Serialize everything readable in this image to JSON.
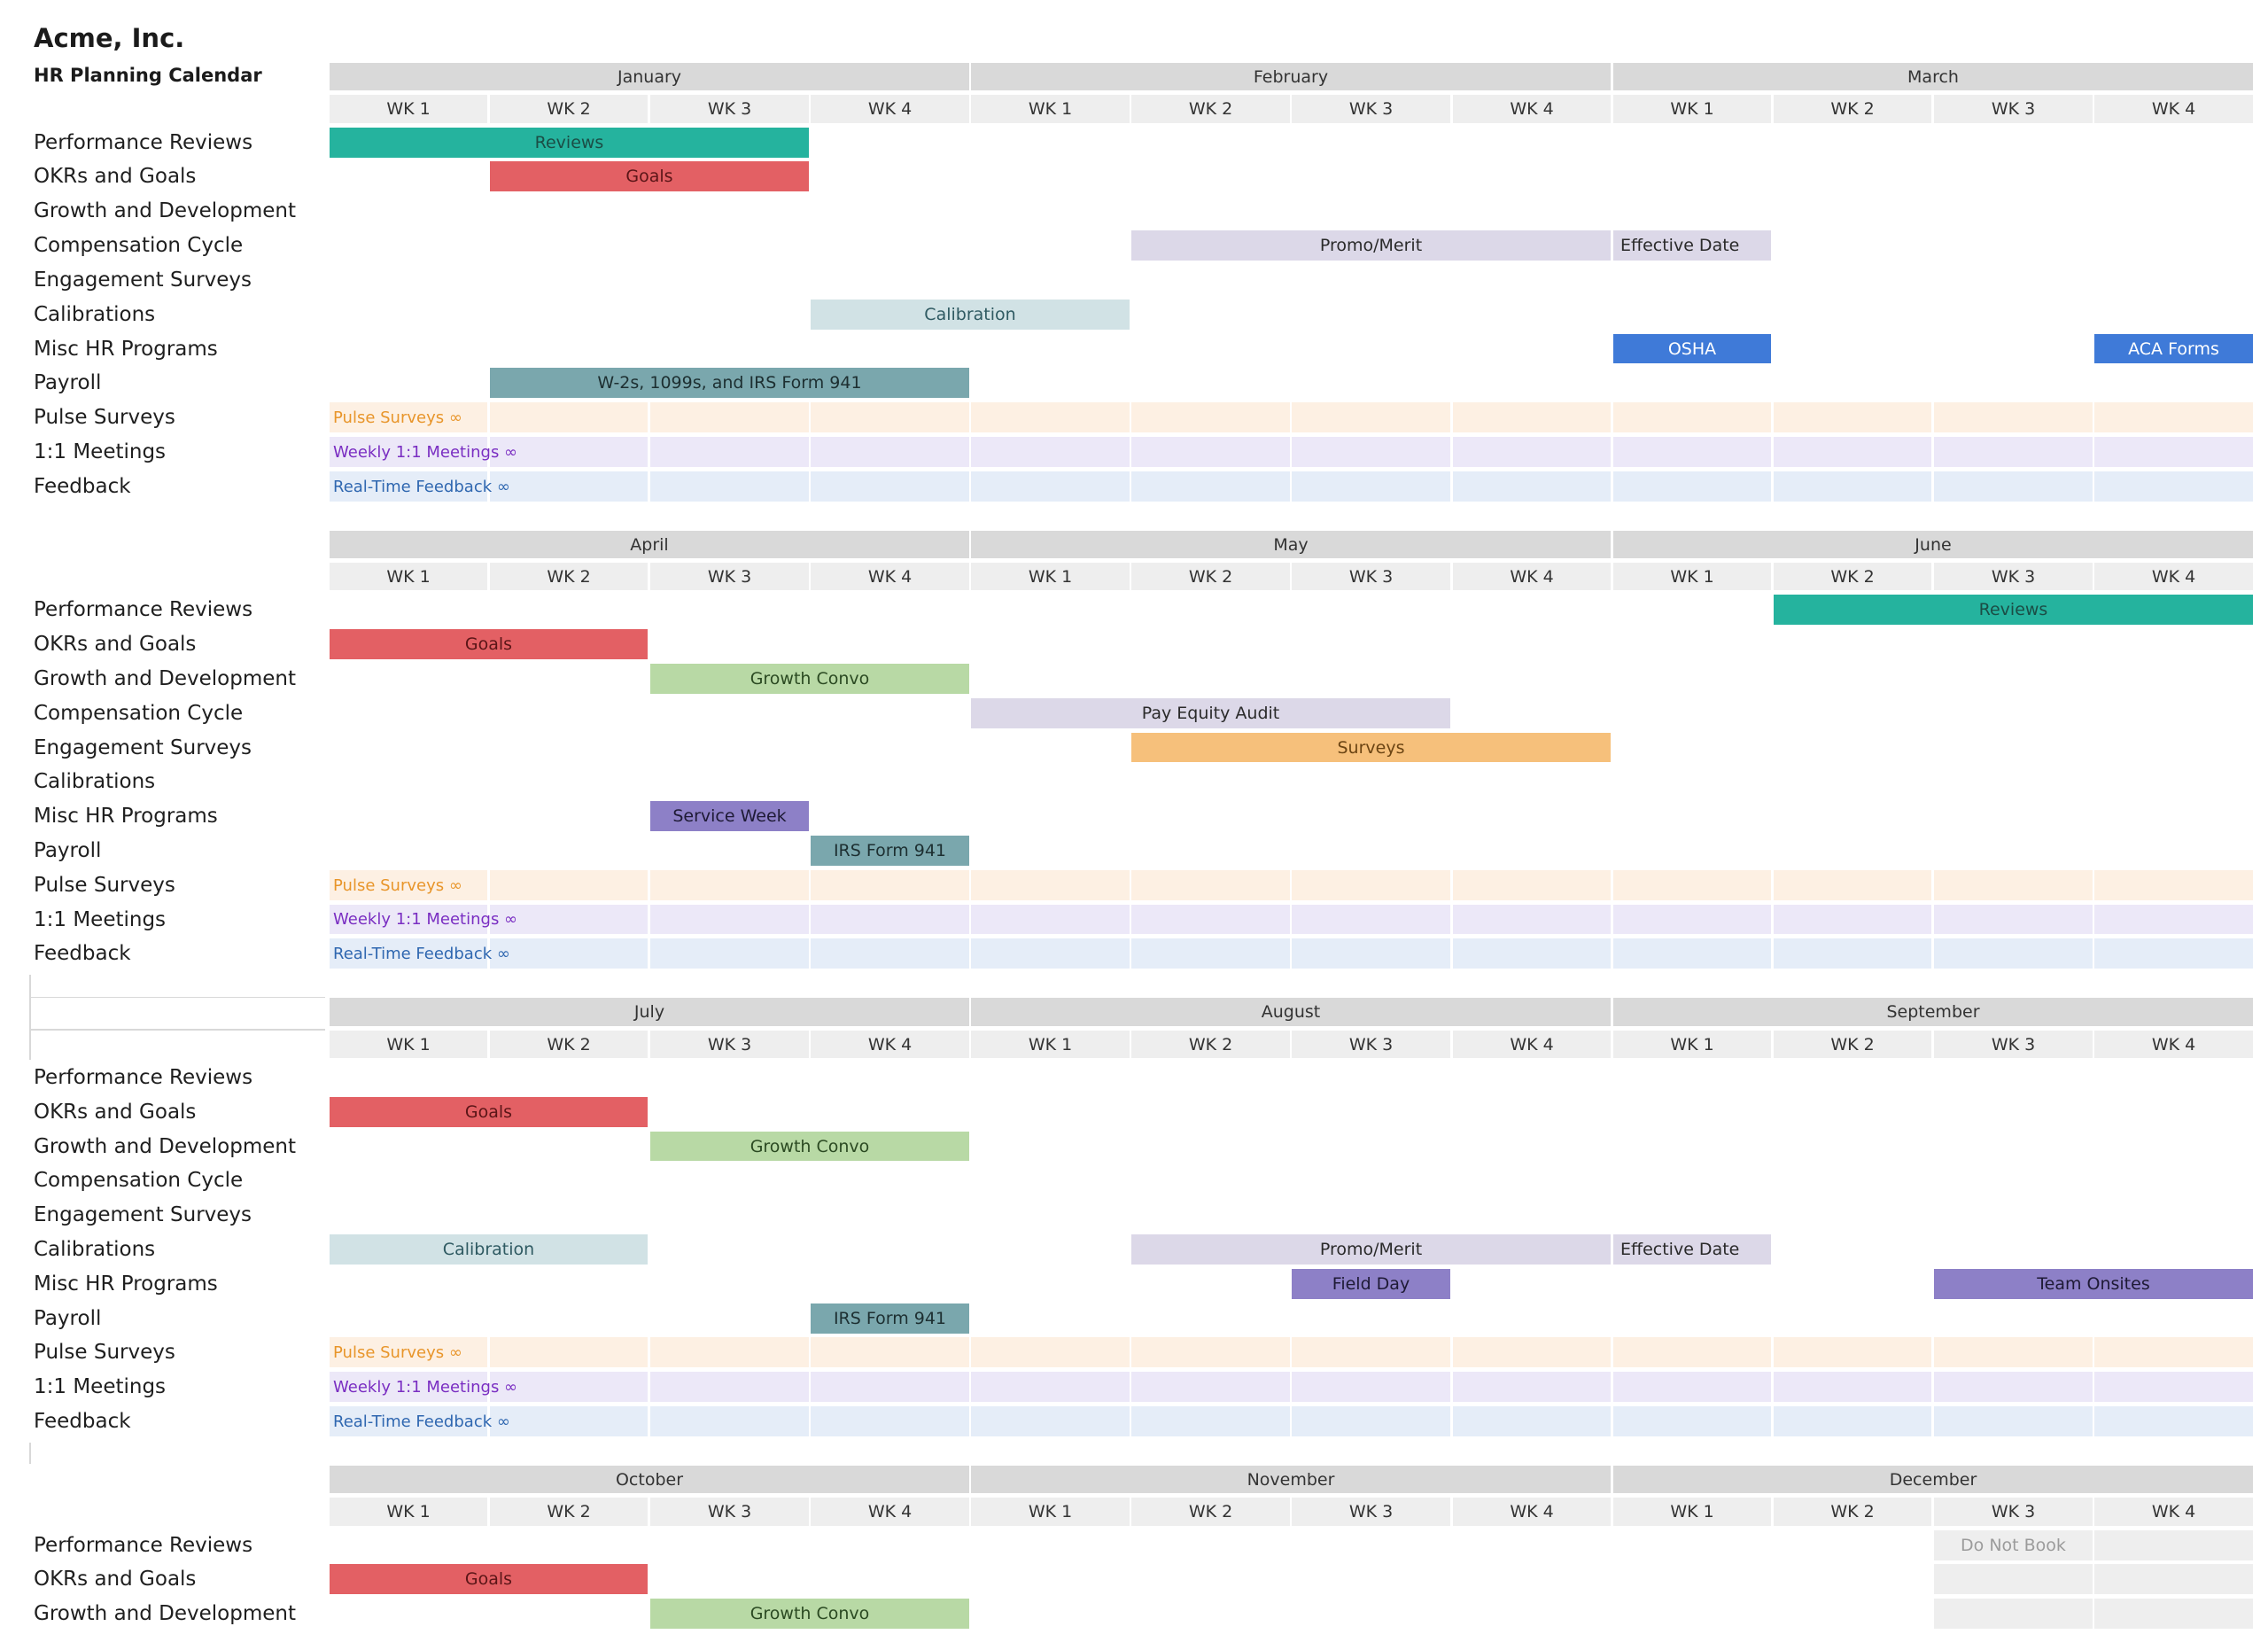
{
  "header": {
    "company": "Acme, Inc.",
    "subtitle": "HR Planning Calendar"
  },
  "colors": {
    "reviews": "#25b39e",
    "goals": "#e36064",
    "growth": "#b8d9a5",
    "promo": "#dcd8e8",
    "effective": "#dcd8e8",
    "surveys": "#f6c07b",
    "calibration": "#d1e2e5",
    "osha": "#3f7ad8",
    "service": "#8d80c7",
    "payroll": "#7aa7ad",
    "pulse_bg": "#fdf0e3",
    "pulse_text": "#e8952a",
    "meetings_bg": "#ece8f8",
    "meetings_text": "#7a2ec2",
    "feedback_bg": "#e5edf8",
    "feedback_text": "#2f67b0",
    "donotbook": "#eeeeee"
  },
  "week_labels": [
    "WK 1",
    "WK 2",
    "WK 3",
    "WK 4"
  ],
  "row_labels": [
    "Performance Reviews",
    "OKRs and Goals",
    "Growth and Development",
    "Compensation Cycle",
    "Engagement Surveys",
    "Calibrations",
    "Misc HR Programs",
    "Payroll",
    "Pulse Surveys",
    "1:1 Meetings",
    "Feedback"
  ],
  "ongoing": {
    "pulse": "Pulse Surveys ∞",
    "meetings": "Weekly 1:1 Meetings ∞",
    "feedback": "Real-Time Feedback ∞"
  },
  "quarters": [
    {
      "months": [
        "January",
        "February",
        "March"
      ],
      "rows": 11,
      "events": [
        {
          "row": 0,
          "start": 0,
          "span": 3,
          "label": "Reviews",
          "color": "reviews",
          "text": "#1b4d45"
        },
        {
          "row": 1,
          "start": 1,
          "span": 2,
          "label": "Goals",
          "color": "goals",
          "text": "#5a1517"
        },
        {
          "row": 3,
          "start": 5,
          "span": 3,
          "label": "Promo/Merit",
          "color": "promo",
          "text": "#2a2a2a"
        },
        {
          "row": 3,
          "start": 8,
          "span": 1,
          "label": "Effective Date",
          "color": "effective",
          "text": "#2a2a2a",
          "align": "left"
        },
        {
          "row": 5,
          "start": 3,
          "span": 2,
          "label": "Calibration",
          "color": "calibration",
          "text": "#2f5a62"
        },
        {
          "row": 6,
          "start": 8,
          "span": 1,
          "label": "OSHA",
          "color": "osha",
          "text": "#ffffff"
        },
        {
          "row": 6,
          "start": 11,
          "span": 1,
          "label": "ACA Forms",
          "color": "osha",
          "text": "#ffffff"
        },
        {
          "row": 7,
          "start": 1,
          "span": 3,
          "label": "W-2s, 1099s, and IRS Form 941",
          "color": "payroll",
          "text": "#1d2f31"
        }
      ]
    },
    {
      "months": [
        "April",
        "May",
        "June"
      ],
      "rows": 11,
      "events": [
        {
          "row": 0,
          "start": 9,
          "span": 3,
          "label": "Reviews",
          "color": "reviews",
          "text": "#1b4d45"
        },
        {
          "row": 1,
          "start": 0,
          "span": 2,
          "label": "Goals",
          "color": "goals",
          "text": "#5a1517"
        },
        {
          "row": 2,
          "start": 2,
          "span": 2,
          "label": "Growth Convo",
          "color": "growth",
          "text": "#2b4a22"
        },
        {
          "row": 3,
          "start": 4,
          "span": 3,
          "label": "Pay Equity Audit",
          "color": "promo",
          "text": "#2a2a2a"
        },
        {
          "row": 4,
          "start": 5,
          "span": 3,
          "label": "Surveys",
          "color": "surveys",
          "text": "#6b4413"
        },
        {
          "row": 6,
          "start": 2,
          "span": 1,
          "label": "Service Week",
          "color": "service",
          "text": "#1e1a35"
        },
        {
          "row": 7,
          "start": 3,
          "span": 1,
          "label": "IRS Form 941",
          "color": "payroll",
          "text": "#1d2f31"
        }
      ]
    },
    {
      "months": [
        "July",
        "August",
        "September"
      ],
      "rows": 11,
      "events": [
        {
          "row": 1,
          "start": 0,
          "span": 2,
          "label": "Goals",
          "color": "goals",
          "text": "#5a1517"
        },
        {
          "row": 2,
          "start": 2,
          "span": 2,
          "label": "Growth Convo",
          "color": "growth",
          "text": "#2b4a22"
        },
        {
          "row": 5,
          "start": 0,
          "span": 2,
          "label": "Calibration",
          "color": "calibration",
          "text": "#2f5a62"
        },
        {
          "row": 5,
          "start": 5,
          "span": 3,
          "label": "Promo/Merit",
          "color": "promo",
          "text": "#2a2a2a"
        },
        {
          "row": 5,
          "start": 8,
          "span": 1,
          "label": "Effective Date",
          "color": "effective",
          "text": "#2a2a2a",
          "align": "left"
        },
        {
          "row": 6,
          "start": 6,
          "span": 1,
          "label": "Field Day",
          "color": "service",
          "text": "#1e1a35"
        },
        {
          "row": 6,
          "start": 10,
          "span": 2,
          "label": "Team Onsites",
          "color": "service",
          "text": "#1e1a35"
        },
        {
          "row": 7,
          "start": 3,
          "span": 1,
          "label": "IRS Form 941",
          "color": "payroll",
          "text": "#1d2f31"
        }
      ]
    },
    {
      "months": [
        "October",
        "November",
        "December"
      ],
      "rows": 3,
      "events": [
        {
          "row": 1,
          "start": 0,
          "span": 2,
          "label": "Goals",
          "color": "goals",
          "text": "#5a1517"
        },
        {
          "row": 2,
          "start": 2,
          "span": 2,
          "label": "Growth Convo",
          "color": "growth",
          "text": "#2b4a22"
        }
      ],
      "do_not_book": {
        "label": "Do Not Book"
      }
    }
  ]
}
